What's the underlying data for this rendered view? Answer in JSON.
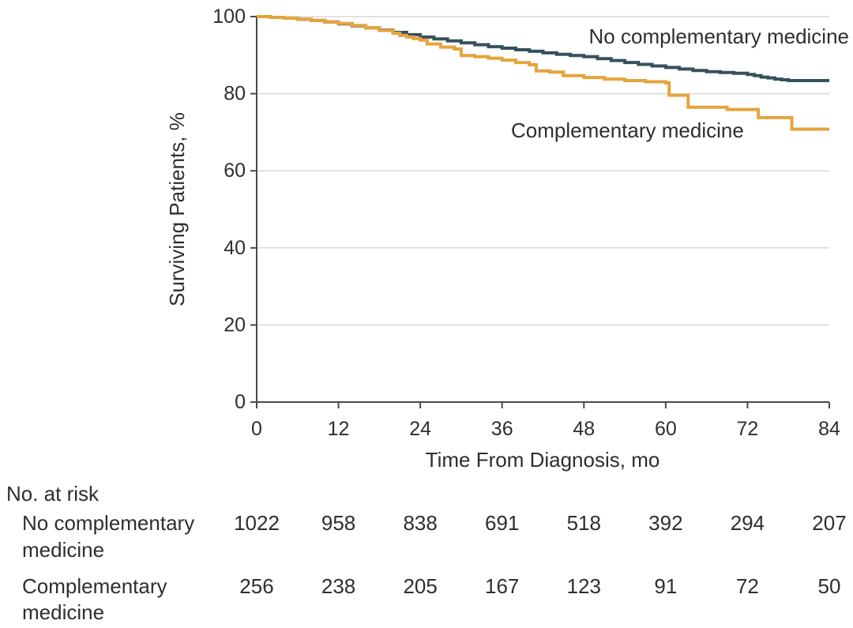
{
  "figure": {
    "y_axis_title": "Surviving Patients, %",
    "x_axis_title": "Time From Diagnosis, mo",
    "at_risk_title": "No. at risk"
  },
  "colors": {
    "no_complementary_curve": "#35525c",
    "complementary_curve": "#e5a43c",
    "grid_line": "#d8d8d8",
    "axis_line": "#4a4a4a",
    "text": "#2e2e2e",
    "background": "#ffffff"
  },
  "chart_data": {
    "type": "line",
    "subtype": "kaplan-meier-step",
    "title": "",
    "xlabel": "Time From Diagnosis, mo",
    "ylabel": "Surviving Patients, %",
    "xlim": [
      0,
      84
    ],
    "ylim": [
      0,
      100
    ],
    "x_ticks": [
      0,
      12,
      24,
      36,
      48,
      60,
      72,
      84
    ],
    "y_ticks": [
      0,
      20,
      40,
      60,
      80,
      100
    ],
    "grid": "horizontal",
    "legend_position": "inline-labels",
    "at_risk_columns_months": [
      0,
      12,
      24,
      36,
      48,
      60,
      72,
      84
    ],
    "series": [
      {
        "name": "No complementary medicine",
        "label_lines": [
          "No complementary",
          "medicine"
        ],
        "color": "#35525c",
        "at_risk": [
          1022,
          958,
          838,
          691,
          518,
          392,
          294,
          207
        ],
        "points": [
          [
            0,
            100
          ],
          [
            2,
            99.8
          ],
          [
            4,
            99.6
          ],
          [
            6,
            99.3
          ],
          [
            8,
            99.0
          ],
          [
            10,
            98.6
          ],
          [
            12,
            98.1
          ],
          [
            14,
            97.6
          ],
          [
            16,
            97.1
          ],
          [
            18,
            96.5
          ],
          [
            20,
            95.9
          ],
          [
            22,
            95.3
          ],
          [
            24,
            94.7
          ],
          [
            26,
            94.2
          ],
          [
            28,
            93.7
          ],
          [
            30,
            93.2
          ],
          [
            32,
            92.7
          ],
          [
            34,
            92.2
          ],
          [
            36,
            91.8
          ],
          [
            38,
            91.4
          ],
          [
            40,
            91.0
          ],
          [
            42,
            90.6
          ],
          [
            44,
            90.2
          ],
          [
            46,
            89.9
          ],
          [
            48,
            89.6
          ],
          [
            50,
            89.1
          ],
          [
            52,
            88.6
          ],
          [
            54,
            88.1
          ],
          [
            56,
            87.6
          ],
          [
            58,
            87.2
          ],
          [
            60,
            86.8
          ],
          [
            62,
            86.4
          ],
          [
            64,
            86.0
          ],
          [
            66,
            85.7
          ],
          [
            68,
            85.5
          ],
          [
            70,
            85.3
          ],
          [
            72,
            85.0
          ],
          [
            73,
            84.7
          ],
          [
            74,
            84.3
          ],
          [
            75,
            84.1
          ],
          [
            76,
            83.8
          ],
          [
            77,
            83.6
          ],
          [
            78,
            83.4
          ],
          [
            84,
            83.4
          ]
        ]
      },
      {
        "name": "Complementary medicine",
        "label_lines": [
          "Complementary",
          "medicine"
        ],
        "color": "#e5a43c",
        "at_risk": [
          256,
          238,
          205,
          167,
          123,
          91,
          72,
          50
        ],
        "points": [
          [
            0,
            100
          ],
          [
            2,
            99.8
          ],
          [
            4,
            99.6
          ],
          [
            6,
            99.3
          ],
          [
            8,
            99.0
          ],
          [
            10,
            98.6
          ],
          [
            12,
            98.2
          ],
          [
            14,
            97.7
          ],
          [
            16,
            97.1
          ],
          [
            18,
            96.4
          ],
          [
            20,
            95.7
          ],
          [
            21,
            95.1
          ],
          [
            22,
            94.7
          ],
          [
            23,
            94.3
          ],
          [
            24,
            93.9
          ],
          [
            25,
            92.9
          ],
          [
            27,
            92.1
          ],
          [
            29,
            91.6
          ],
          [
            30,
            89.9
          ],
          [
            32,
            89.6
          ],
          [
            34,
            89.2
          ],
          [
            36,
            88.7
          ],
          [
            38,
            88.1
          ],
          [
            40,
            87.5
          ],
          [
            41,
            85.9
          ],
          [
            43,
            85.6
          ],
          [
            45,
            84.7
          ],
          [
            48,
            84.2
          ],
          [
            51,
            83.8
          ],
          [
            54,
            83.4
          ],
          [
            57,
            83.1
          ],
          [
            60,
            82.8
          ],
          [
            60.5,
            79.6
          ],
          [
            63.3,
            76.5
          ],
          [
            69,
            75.9
          ],
          [
            73.6,
            73.8
          ],
          [
            78.5,
            70.8
          ],
          [
            84,
            70.8
          ]
        ]
      }
    ]
  }
}
